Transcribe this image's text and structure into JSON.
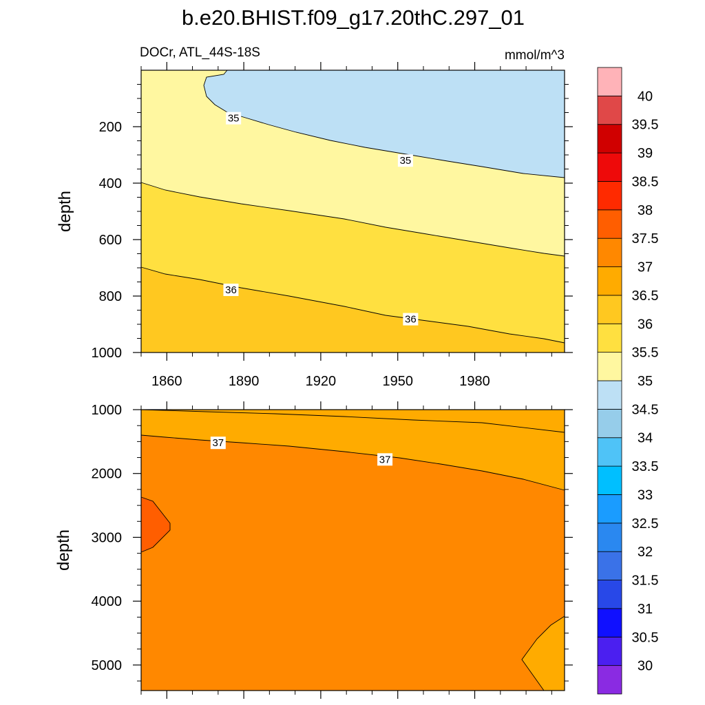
{
  "chart_data": {
    "type": "contour",
    "title": "b.e20.BHIST.f09_g17.20thC.297_01",
    "variable_label": "DOCr, ATL_44S-18S",
    "units": "mmol/m^3",
    "x_range": [
      1850,
      2015
    ],
    "x_ticks": [
      1860,
      1890,
      1920,
      1950,
      1980
    ],
    "x_tick_labels": [
      "1860",
      "1890",
      "1920",
      "1950",
      "1980"
    ],
    "panels": [
      {
        "name": "upper",
        "ylabel": "depth",
        "y_range": [
          0,
          1000
        ],
        "y_ticks": [
          200,
          400,
          600,
          800,
          1000
        ],
        "y_tick_labels": [
          "200",
          "400",
          "600",
          "800",
          "1000"
        ],
        "contour_labels": [
          {
            "text": "35",
            "x": 1886,
            "y": 170
          },
          {
            "text": "35",
            "x": 1953,
            "y": 320
          },
          {
            "text": "36",
            "x": 1885,
            "y": 778
          },
          {
            "text": "36",
            "x": 1955,
            "y": 882
          }
        ]
      },
      {
        "name": "lower",
        "ylabel": "depth",
        "y_range": [
          1000,
          5400
        ],
        "y_ticks": [
          1000,
          2000,
          3000,
          4000,
          5000
        ],
        "y_tick_labels": [
          "1000",
          "2000",
          "3000",
          "4000",
          "5000"
        ],
        "contour_labels": [
          {
            "text": "37",
            "x": 1880,
            "y": 1520
          },
          {
            "text": "37",
            "x": 1945,
            "y": 1780
          }
        ]
      }
    ],
    "colorbar": {
      "levels": [
        "30",
        "30.5",
        "31",
        "31.5",
        "32",
        "32.5",
        "33",
        "33.5",
        "34",
        "34.5",
        "35",
        "35.5",
        "36",
        "36.5",
        "37",
        "37.5",
        "38",
        "38.5",
        "39",
        "39.5",
        "40"
      ],
      "colors": [
        "#8a2be2",
        "#4b1ff0",
        "#1010ff",
        "#2848e8",
        "#3a72e8",
        "#2a88f0",
        "#1a9cff",
        "#00bfff",
        "#4fc3f7",
        "#96cdea",
        "#bde0f5",
        "#fff7a0",
        "#ffe040",
        "#ffc820",
        "#ffab00",
        "#ff8800",
        "#ff5e00",
        "#ff2a00",
        "#ee0a0a",
        "#d00000",
        "#e04848",
        "#ffb3b8"
      ]
    },
    "fill_colors": {
      "lt34_5": "#bde0f5",
      "c35_355": "#fff7a0",
      "c355_36": "#ffe040",
      "c36_365": "#ffc820",
      "c365_37": "#ffab00",
      "c37_375": "#ff8800",
      "c375_38": "#ff5e00"
    }
  }
}
